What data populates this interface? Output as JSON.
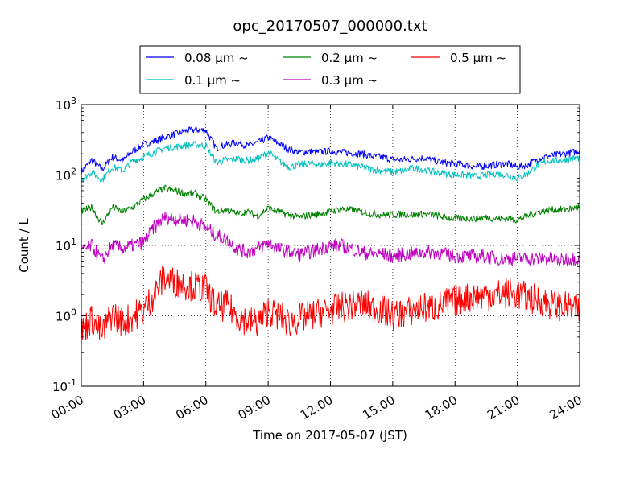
{
  "chart_data": {
    "type": "line",
    "title": "opc_20170507_000000.txt",
    "xlabel": "Time on 2017-05-07 (JST)",
    "ylabel": "Count / L",
    "yscale": "log",
    "xlim": [
      "00:00",
      "24:00"
    ],
    "ylim": [
      0.1,
      1000
    ],
    "grid": true,
    "legend_position": "top-center",
    "x_ticks": [
      "00:00",
      "03:00",
      "06:00",
      "09:00",
      "12:00",
      "15:00",
      "18:00",
      "21:00",
      "24:00"
    ],
    "y_ticks": [
      {
        "base": "10",
        "exp": "-1"
      },
      {
        "base": "10",
        "exp": "0"
      },
      {
        "base": "10",
        "exp": "1"
      },
      {
        "base": "10",
        "exp": "2"
      },
      {
        "base": "10",
        "exp": "3"
      }
    ],
    "x_hours": [
      0,
      0.5,
      1,
      1.5,
      2,
      2.5,
      3,
      3.5,
      4,
      4.5,
      5,
      5.5,
      6,
      6.5,
      7,
      7.5,
      8,
      8.5,
      9,
      9.5,
      10,
      10.5,
      11,
      11.5,
      12,
      12.5,
      13,
      13.5,
      14,
      14.5,
      15,
      15.5,
      16,
      16.5,
      17,
      17.5,
      18,
      18.5,
      19,
      19.5,
      20,
      20.5,
      21,
      21.5,
      22,
      22.5,
      23,
      23.5,
      24
    ],
    "series": [
      {
        "name": "0.08 μm ~",
        "color": "#0000ff",
        "values": [
          110,
          165,
          120,
          180,
          160,
          220,
          270,
          300,
          340,
          380,
          420,
          440,
          430,
          240,
          270,
          290,
          260,
          290,
          340,
          280,
          230,
          210,
          215,
          210,
          220,
          210,
          205,
          200,
          185,
          180,
          165,
          165,
          170,
          175,
          160,
          150,
          145,
          140,
          130,
          135,
          140,
          145,
          130,
          140,
          170,
          185,
          195,
          205,
          220
        ]
      },
      {
        "name": "0.1 μm ~",
        "color": "#00bfbf",
        "values": [
          85,
          110,
          85,
          130,
          115,
          160,
          180,
          210,
          240,
          250,
          260,
          270,
          260,
          150,
          165,
          170,
          160,
          170,
          210,
          160,
          130,
          140,
          145,
          140,
          150,
          145,
          140,
          130,
          120,
          115,
          110,
          115,
          125,
          120,
          110,
          105,
          100,
          100,
          95,
          100,
          105,
          100,
          90,
          105,
          140,
          160,
          160,
          170,
          175
        ]
      },
      {
        "name": "0.2 μm ~",
        "color": "#008000",
        "values": [
          30,
          35,
          20,
          35,
          30,
          35,
          45,
          55,
          65,
          60,
          55,
          55,
          45,
          30,
          32,
          28,
          30,
          26,
          34,
          30,
          27,
          25,
          27,
          28,
          30,
          33,
          32,
          30,
          28,
          27,
          27,
          28,
          27,
          28,
          27,
          25,
          24,
          24,
          24,
          25,
          24,
          24,
          23,
          26,
          30,
          32,
          32,
          33,
          35
        ]
      },
      {
        "name": "0.3 μm ~",
        "color": "#bf00bf",
        "values": [
          8,
          10,
          6,
          10,
          9,
          10,
          11,
          18,
          25,
          24,
          23,
          22,
          18,
          14,
          12,
          9,
          8,
          9,
          11,
          9,
          8,
          7.5,
          8,
          9,
          10,
          10,
          9,
          8,
          7.5,
          7.5,
          7,
          7.5,
          7.5,
          8,
          8,
          7.5,
          7,
          7,
          7,
          7,
          6.5,
          6.5,
          6.5,
          6.5,
          6.5,
          6.5,
          6,
          6.5,
          6.5
        ]
      },
      {
        "name": "0.5 μm ~",
        "color": "#ff0000",
        "values": [
          0.6,
          0.9,
          0.55,
          1.1,
          0.8,
          1,
          1.2,
          2,
          3.5,
          3,
          2.8,
          2.6,
          2.4,
          1.3,
          1.4,
          1,
          0.85,
          0.8,
          1.2,
          1,
          0.8,
          0.9,
          1,
          1.1,
          1.2,
          1.3,
          1.4,
          1.5,
          1.3,
          1.2,
          1,
          1.1,
          1.2,
          1.3,
          1.3,
          1.5,
          1.6,
          1.8,
          1.9,
          2,
          2,
          2.1,
          2,
          1.8,
          1.7,
          1.5,
          1.4,
          1.3,
          1.2
        ]
      }
    ]
  }
}
